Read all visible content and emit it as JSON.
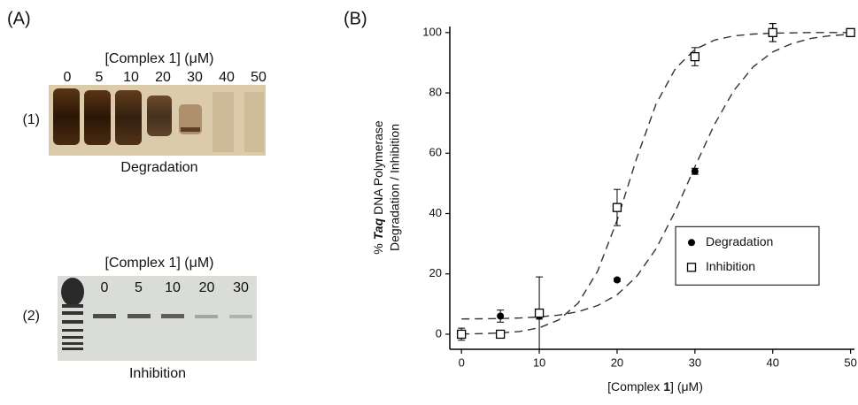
{
  "panel_a": {
    "label": "(A)",
    "gels": [
      {
        "label": "(1)",
        "caption": "Degradation",
        "axis_title": "[Complex 1] (μM)",
        "lanes": [
          0,
          5,
          10,
          20,
          30,
          40,
          50
        ]
      },
      {
        "label": "(2)",
        "caption": "Inhibition",
        "axis_title": "[Complex 1] (μM)",
        "lanes": [
          0,
          5,
          10,
          20,
          30
        ]
      }
    ]
  },
  "chart_data": {
    "type": "scatter",
    "panel_label": "(B)",
    "xlabel": [
      "[Complex",
      "1",
      "] (μM)"
    ],
    "ylabel": [
      "%",
      "Taq",
      "DNA Polymerase",
      "Degradation / Inhibition"
    ],
    "xlim": [
      -1.5,
      50.5
    ],
    "ylim": [
      -5,
      102
    ],
    "xticks": [
      0,
      10,
      20,
      30,
      40,
      50
    ],
    "yticks": [
      0,
      20,
      40,
      60,
      80,
      100
    ],
    "legend": "center right",
    "series": [
      {
        "name": "Degradation",
        "marker": "circle",
        "color": "#000000",
        "x": [
          0,
          5,
          10,
          20,
          30,
          40,
          50
        ],
        "values": [
          0,
          6,
          6,
          18,
          54,
          100,
          100
        ],
        "errors": [
          1,
          2,
          1,
          0.5,
          1,
          3,
          0.5
        ]
      },
      {
        "name": "Inhibition",
        "marker": "square",
        "color": "#000000",
        "x": [
          0,
          5,
          10,
          20,
          30,
          40,
          50
        ],
        "values": [
          0,
          0,
          7,
          42,
          92,
          100,
          100
        ],
        "errors": [
          2,
          1,
          12,
          6,
          3,
          3,
          0.5
        ]
      }
    ],
    "fits": [
      {
        "color": "#333333",
        "x": [
          0,
          2.5,
          5,
          7.5,
          10,
          12.5,
          15,
          17.5,
          20,
          22.5,
          25,
          27.5,
          30,
          32.5,
          35,
          37.5,
          40,
          42.5,
          45,
          47.5,
          50
        ],
        "values": [
          5.06,
          5.11,
          5.21,
          5.39,
          5.72,
          6.34,
          7.47,
          9.5,
          13.09,
          19.1,
          28.3,
          40.9,
          55.5,
          69.5,
          80.8,
          88.7,
          93.6,
          96.4,
          98.1,
          99.0,
          99.4
        ]
      },
      {
        "color": "#333333",
        "x": [
          0,
          2.5,
          5,
          7.5,
          10,
          12.5,
          15,
          17.5,
          20,
          22.5,
          25,
          27.5,
          30,
          32.5,
          35,
          37.5,
          40,
          42.5,
          45,
          47.5,
          50
        ],
        "values": [
          0.08,
          0.18,
          0.41,
          0.93,
          2.12,
          4.74,
          10.3,
          20.9,
          37.8,
          58.2,
          76.3,
          88.1,
          94.4,
          97.5,
          98.9,
          99.5,
          99.8,
          99.9,
          100,
          100,
          100
        ]
      }
    ]
  }
}
